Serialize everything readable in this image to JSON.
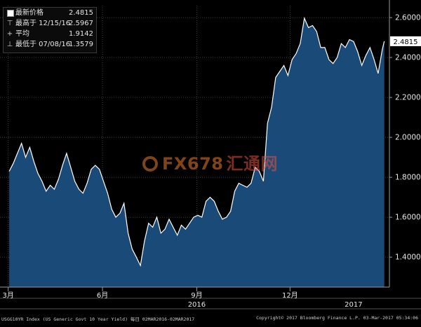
{
  "chart_data": {
    "type": "area",
    "title": "",
    "xlabel": "",
    "ylabel": "",
    "ylim": [
      1.25,
      2.66
    ],
    "y_ticks": [
      1.4,
      1.6,
      1.8,
      2.0,
      2.2,
      2.4,
      2.6
    ],
    "y_tick_labels": [
      "1.4000",
      "1.6000",
      "1.8000",
      "2.0000",
      "2.2000",
      "2.4000",
      "2.6000"
    ],
    "x_ticks": [
      {
        "x": "2016-03-01",
        "label": "3月"
      },
      {
        "x": "2016-06-01",
        "label": "6月"
      },
      {
        "x": "2016-09-01",
        "label": "9月"
      },
      {
        "x": "2016-12-01",
        "label": "12月"
      }
    ],
    "year_labels": [
      {
        "x": "2016-09-01",
        "label": "2016"
      },
      {
        "x": "2017-02-01",
        "label": "2017"
      }
    ],
    "xlim": [
      "2016-02-22",
      "2017-03-08"
    ],
    "grid": true,
    "last_value_label": "2.4815",
    "series": [
      {
        "color": "#ffffff",
        "fill": "#1a4a78",
        "points": [
          [
            "2016-03-02",
            1.83
          ],
          [
            "2016-03-06",
            1.87
          ],
          [
            "2016-03-10",
            1.92
          ],
          [
            "2016-03-14",
            1.97
          ],
          [
            "2016-03-18",
            1.9
          ],
          [
            "2016-03-22",
            1.95
          ],
          [
            "2016-03-26",
            1.88
          ],
          [
            "2016-03-30",
            1.82
          ],
          [
            "2016-04-03",
            1.78
          ],
          [
            "2016-04-07",
            1.73
          ],
          [
            "2016-04-11",
            1.76
          ],
          [
            "2016-04-15",
            1.74
          ],
          [
            "2016-04-19",
            1.79
          ],
          [
            "2016-04-23",
            1.86
          ],
          [
            "2016-04-27",
            1.92
          ],
          [
            "2016-05-01",
            1.85
          ],
          [
            "2016-05-05",
            1.78
          ],
          [
            "2016-05-09",
            1.74
          ],
          [
            "2016-05-13",
            1.72
          ],
          [
            "2016-05-17",
            1.77
          ],
          [
            "2016-05-21",
            1.84
          ],
          [
            "2016-05-25",
            1.86
          ],
          [
            "2016-05-29",
            1.84
          ],
          [
            "2016-06-02",
            1.78
          ],
          [
            "2016-06-06",
            1.72
          ],
          [
            "2016-06-10",
            1.64
          ],
          [
            "2016-06-14",
            1.6
          ],
          [
            "2016-06-18",
            1.62
          ],
          [
            "2016-06-22",
            1.67
          ],
          [
            "2016-06-26",
            1.52
          ],
          [
            "2016-06-30",
            1.44
          ],
          [
            "2016-07-04",
            1.4
          ],
          [
            "2016-07-08",
            1.3579
          ],
          [
            "2016-07-12",
            1.48
          ],
          [
            "2016-07-16",
            1.57
          ],
          [
            "2016-07-20",
            1.55
          ],
          [
            "2016-07-24",
            1.6
          ],
          [
            "2016-07-28",
            1.52
          ],
          [
            "2016-08-01",
            1.54
          ],
          [
            "2016-08-05",
            1.59
          ],
          [
            "2016-08-09",
            1.55
          ],
          [
            "2016-08-13",
            1.51
          ],
          [
            "2016-08-17",
            1.56
          ],
          [
            "2016-08-21",
            1.54
          ],
          [
            "2016-08-25",
            1.57
          ],
          [
            "2016-08-29",
            1.6
          ],
          [
            "2016-09-02",
            1.61
          ],
          [
            "2016-09-06",
            1.6
          ],
          [
            "2016-09-10",
            1.68
          ],
          [
            "2016-09-14",
            1.7
          ],
          [
            "2016-09-18",
            1.68
          ],
          [
            "2016-09-22",
            1.63
          ],
          [
            "2016-09-26",
            1.59
          ],
          [
            "2016-09-30",
            1.6
          ],
          [
            "2016-10-04",
            1.63
          ],
          [
            "2016-10-08",
            1.73
          ],
          [
            "2016-10-12",
            1.77
          ],
          [
            "2016-10-16",
            1.76
          ],
          [
            "2016-10-20",
            1.75
          ],
          [
            "2016-10-24",
            1.77
          ],
          [
            "2016-10-28",
            1.85
          ],
          [
            "2016-11-01",
            1.83
          ],
          [
            "2016-11-05",
            1.78
          ],
          [
            "2016-11-09",
            2.07
          ],
          [
            "2016-11-13",
            2.15
          ],
          [
            "2016-11-17",
            2.3
          ],
          [
            "2016-11-21",
            2.33
          ],
          [
            "2016-11-25",
            2.36
          ],
          [
            "2016-11-29",
            2.31
          ],
          [
            "2016-12-03",
            2.39
          ],
          [
            "2016-12-07",
            2.42
          ],
          [
            "2016-12-11",
            2.47
          ],
          [
            "2016-12-15",
            2.5967
          ],
          [
            "2016-12-19",
            2.55
          ],
          [
            "2016-12-23",
            2.56
          ],
          [
            "2016-12-27",
            2.53
          ],
          [
            "2016-12-31",
            2.45
          ],
          [
            "2017-01-04",
            2.45
          ],
          [
            "2017-01-08",
            2.39
          ],
          [
            "2017-01-12",
            2.37
          ],
          [
            "2017-01-16",
            2.4
          ],
          [
            "2017-01-20",
            2.47
          ],
          [
            "2017-01-24",
            2.45
          ],
          [
            "2017-01-28",
            2.49
          ],
          [
            "2017-02-01",
            2.48
          ],
          [
            "2017-02-05",
            2.43
          ],
          [
            "2017-02-09",
            2.36
          ],
          [
            "2017-02-13",
            2.41
          ],
          [
            "2017-02-17",
            2.45
          ],
          [
            "2017-02-21",
            2.39
          ],
          [
            "2017-02-25",
            2.32
          ],
          [
            "2017-03-01",
            2.44
          ],
          [
            "2017-03-03",
            2.4815
          ]
        ]
      }
    ]
  },
  "legend": {
    "rows": [
      {
        "label": "最新价格",
        "value": "2.4815"
      },
      {
        "label": "最高于 12/15/16",
        "value": "2.5967"
      },
      {
        "label": "平均",
        "value": "1.9142"
      },
      {
        "label": "最低于 07/08/16",
        "value": "1.3579"
      }
    ]
  },
  "watermark": {
    "latin": "FX678",
    "cn": "汇通网"
  },
  "footer": {
    "left": "USGG10YR Index (US Generic Govt 10 Year Yield)  每日 02MAR2016-02MAR2017",
    "right": "Copyright© 2017 Bloomberg Finance L.P.      03-Mar-2017 05:34:06"
  }
}
